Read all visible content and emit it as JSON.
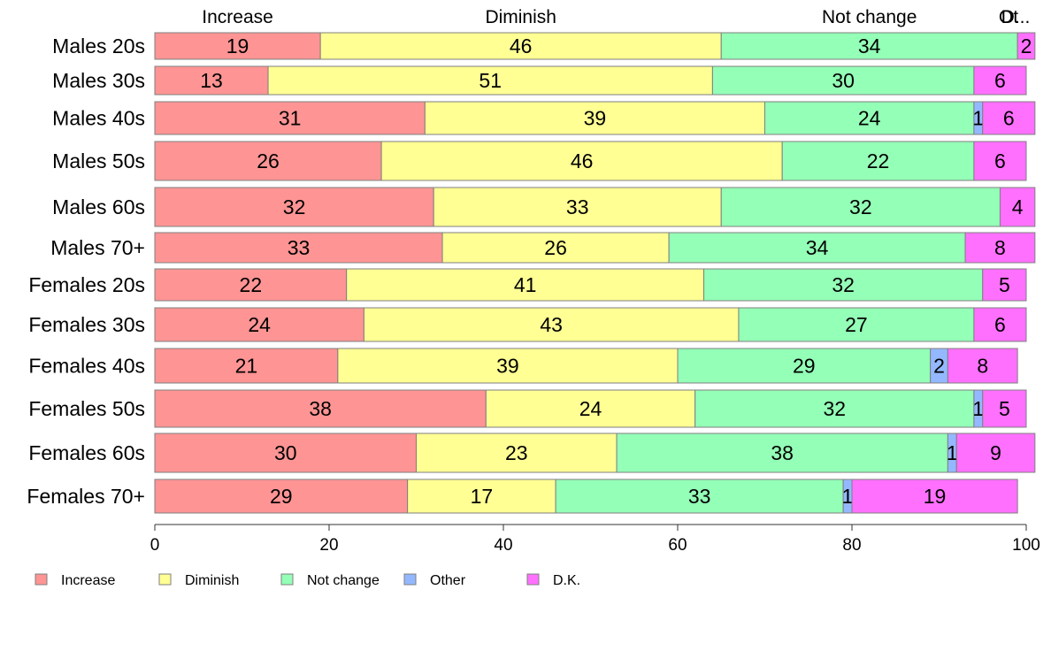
{
  "chart_data": {
    "type": "bar",
    "orientation": "horizontal",
    "stacked": true,
    "categories": [
      "Males 20s",
      "Males 30s",
      "Males 40s",
      "Males 50s",
      "Males 60s",
      "Males 70+",
      "Females 20s",
      "Females 30s",
      "Females 40s",
      "Females 50s",
      "Females 60s",
      "Females 70+"
    ],
    "series": [
      {
        "name": "Increase",
        "color": "#ff9494",
        "values": [
          19,
          13,
          31,
          26,
          32,
          33,
          22,
          24,
          21,
          38,
          30,
          29
        ]
      },
      {
        "name": "Diminish",
        "color": "#ffff94",
        "values": [
          46,
          51,
          39,
          46,
          33,
          26,
          41,
          43,
          39,
          24,
          23,
          17
        ]
      },
      {
        "name": "Not change",
        "color": "#94ffb7",
        "values": [
          34,
          30,
          24,
          22,
          32,
          34,
          32,
          27,
          29,
          32,
          38,
          33
        ]
      },
      {
        "name": "Other",
        "color": "#94b8ff",
        "values": [
          0,
          0,
          1,
          0,
          0,
          0,
          0,
          0,
          2,
          1,
          1,
          1
        ]
      },
      {
        "name": "D.K.",
        "color": "#ff70ff",
        "values": [
          2,
          6,
          6,
          6,
          4,
          8,
          5,
          6,
          8,
          5,
          9,
          19
        ]
      }
    ],
    "top_labels": [
      "Increase",
      "Diminish",
      "Not change",
      "Ot",
      "D..."
    ],
    "xlim": [
      0,
      100
    ],
    "xticks": [
      "0",
      "20",
      "40",
      "60",
      "80",
      "100"
    ],
    "grid": false,
    "legend_position": "bottom-left"
  }
}
